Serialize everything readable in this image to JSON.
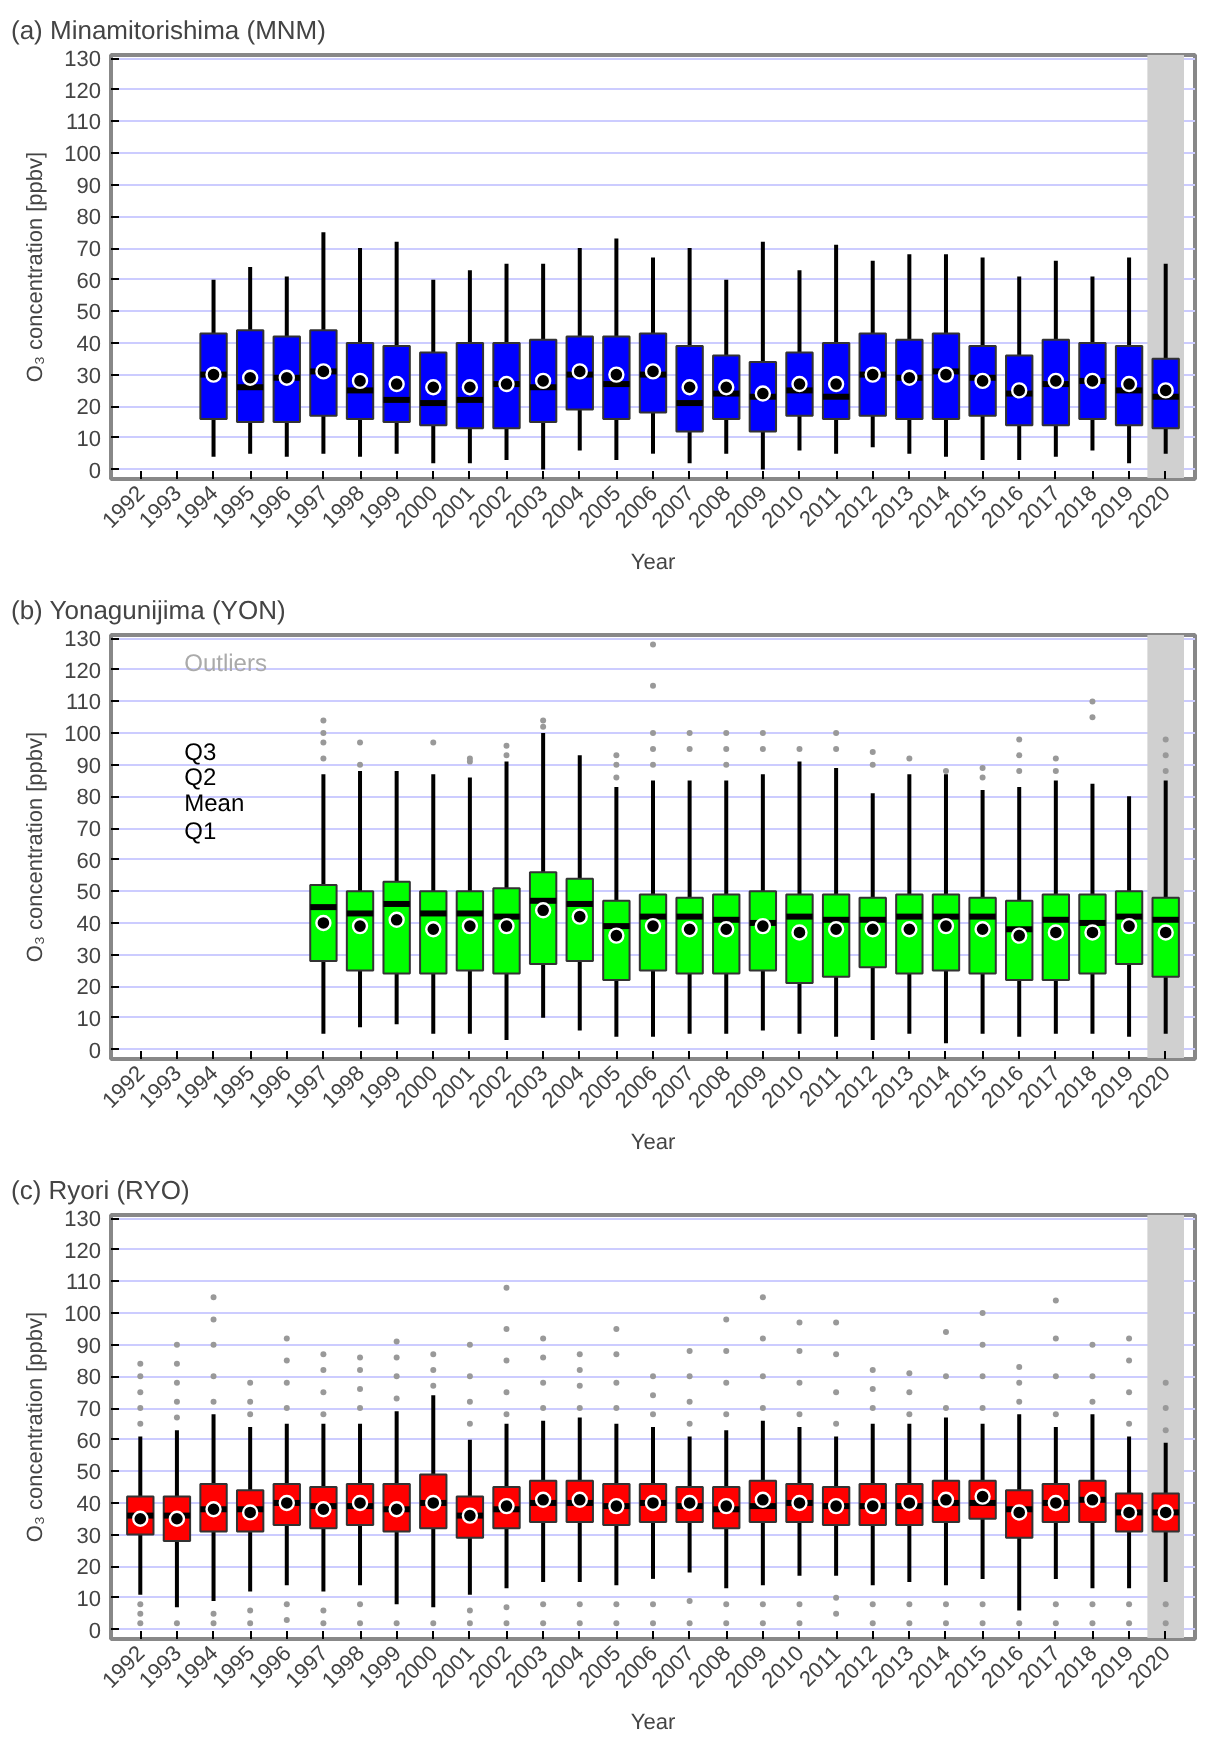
{
  "chart_data": [
    {
      "type": "box",
      "title": "(a) Minamitorishima (MNM)",
      "xlabel": "Year",
      "ylabel": "O₃ concentration [ppbv]",
      "categories": [
        "1992",
        "1993",
        "1994",
        "1995",
        "1996",
        "1997",
        "1998",
        "1999",
        "2000",
        "2001",
        "2002",
        "2003",
        "2004",
        "2005",
        "2006",
        "2007",
        "2008",
        "2009",
        "2010",
        "2011",
        "2012",
        "2013",
        "2014",
        "2015",
        "2016",
        "2017",
        "2018",
        "2019",
        "2020"
      ],
      "ylim": [
        -3,
        131
      ],
      "yticks": [
        0,
        10,
        20,
        30,
        40,
        50,
        60,
        70,
        80,
        90,
        100,
        110,
        120,
        130
      ],
      "grid": "y",
      "bands": [
        {
          "axis": "x",
          "from": "2020",
          "to": "2020",
          "color": "#d0d0d0"
        }
      ],
      "series": [
        {
          "color": "#0000ff",
          "boxes": [
            null,
            null,
            {
              "low": 4,
              "q1": 16,
              "median": 30,
              "q3": 43,
              "high": 60,
              "mean": 30
            },
            {
              "low": 5,
              "q1": 15,
              "median": 26,
              "q3": 44,
              "high": 64,
              "mean": 29
            },
            {
              "low": 4,
              "q1": 15,
              "median": 29,
              "q3": 42,
              "high": 61,
              "mean": 29
            },
            {
              "low": 5,
              "q1": 17,
              "median": 31,
              "q3": 44,
              "high": 75,
              "mean": 31
            },
            {
              "low": 4,
              "q1": 16,
              "median": 25,
              "q3": 40,
              "high": 70,
              "mean": 28
            },
            {
              "low": 5,
              "q1": 15,
              "median": 22,
              "q3": 39,
              "high": 72,
              "mean": 27
            },
            {
              "low": 2,
              "q1": 14,
              "median": 21,
              "q3": 37,
              "high": 60,
              "mean": 26
            },
            {
              "low": 2,
              "q1": 13,
              "median": 22,
              "q3": 40,
              "high": 63,
              "mean": 26
            },
            {
              "low": 3,
              "q1": 13,
              "median": 27,
              "q3": 40,
              "high": 65,
              "mean": 27
            },
            {
              "low": 0,
              "q1": 15,
              "median": 26,
              "q3": 41,
              "high": 65,
              "mean": 28
            },
            {
              "low": 6,
              "q1": 19,
              "median": 30,
              "q3": 42,
              "high": 70,
              "mean": 31
            },
            {
              "low": 3,
              "q1": 16,
              "median": 27,
              "q3": 42,
              "high": 73,
              "mean": 30
            },
            {
              "low": 5,
              "q1": 18,
              "median": 30,
              "q3": 43,
              "high": 67,
              "mean": 31
            },
            {
              "low": 2,
              "q1": 12,
              "median": 21,
              "q3": 39,
              "high": 70,
              "mean": 26
            },
            {
              "low": 5,
              "q1": 16,
              "median": 24,
              "q3": 36,
              "high": 60,
              "mean": 26
            },
            {
              "low": 0,
              "q1": 12,
              "median": 23,
              "q3": 34,
              "high": 72,
              "mean": 24
            },
            {
              "low": 6,
              "q1": 17,
              "median": 25,
              "q3": 37,
              "high": 63,
              "mean": 27
            },
            {
              "low": 5,
              "q1": 16,
              "median": 23,
              "q3": 40,
              "high": 71,
              "mean": 27
            },
            {
              "low": 7,
              "q1": 17,
              "median": 30,
              "q3": 43,
              "high": 66,
              "mean": 30
            },
            {
              "low": 5,
              "q1": 16,
              "median": 29,
              "q3": 41,
              "high": 68,
              "mean": 29
            },
            {
              "low": 4,
              "q1": 16,
              "median": 31,
              "q3": 43,
              "high": 68,
              "mean": 30
            },
            {
              "low": 3,
              "q1": 17,
              "median": 29,
              "q3": 39,
              "high": 67,
              "mean": 28
            },
            {
              "low": 3,
              "q1": 14,
              "median": 24,
              "q3": 36,
              "high": 61,
              "mean": 25
            },
            {
              "low": 4,
              "q1": 14,
              "median": 27,
              "q3": 41,
              "high": 66,
              "mean": 28
            },
            {
              "low": 6,
              "q1": 16,
              "median": 28,
              "q3": 40,
              "high": 61,
              "mean": 28
            },
            {
              "low": 2,
              "q1": 14,
              "median": 25,
              "q3": 39,
              "high": 67,
              "mean": 27
            },
            {
              "low": 5,
              "q1": 13,
              "median": 23,
              "q3": 35,
              "high": 65,
              "mean": 25
            }
          ]
        }
      ]
    },
    {
      "type": "box",
      "title": "(b) Yonagunijima (YON)",
      "xlabel": "Year",
      "ylabel": "O₃ concentration [ppbv]",
      "categories": [
        "1992",
        "1993",
        "1994",
        "1995",
        "1996",
        "1997",
        "1998",
        "1999",
        "2000",
        "2001",
        "2002",
        "2003",
        "2004",
        "2005",
        "2006",
        "2007",
        "2008",
        "2009",
        "2010",
        "2011",
        "2012",
        "2013",
        "2014",
        "2015",
        "2016",
        "2017",
        "2018",
        "2019",
        "2020"
      ],
      "ylim": [
        -3,
        131
      ],
      "yticks": [
        0,
        10,
        20,
        30,
        40,
        50,
        60,
        70,
        80,
        90,
        100,
        110,
        120,
        130
      ],
      "grid": "y",
      "annotations": [
        "Outliers",
        "Q3",
        "Q2",
        "Mean",
        "Q1"
      ],
      "bands": [
        {
          "axis": "x",
          "from": "2020",
          "to": "2020",
          "color": "#d0d0d0"
        }
      ],
      "series": [
        {
          "color": "#00ff00",
          "boxes": [
            null,
            null,
            null,
            null,
            null,
            {
              "low": 5,
              "q1": 28,
              "median": 45,
              "q3": 52,
              "high": 87,
              "mean": 40,
              "outliers": [
                92,
                97,
                100,
                104
              ]
            },
            {
              "low": 7,
              "q1": 25,
              "median": 43,
              "q3": 50,
              "high": 88,
              "mean": 39,
              "outliers": [
                90,
                97
              ]
            },
            {
              "low": 8,
              "q1": 24,
              "median": 46,
              "q3": 53,
              "high": 88,
              "mean": 41
            },
            {
              "low": 5,
              "q1": 24,
              "median": 43,
              "q3": 50,
              "high": 87,
              "mean": 38,
              "outliers": [
                97
              ]
            },
            {
              "low": 5,
              "q1": 25,
              "median": 43,
              "q3": 50,
              "high": 86,
              "mean": 39,
              "outliers": [
                91,
                92
              ]
            },
            {
              "low": 3,
              "q1": 24,
              "median": 42,
              "q3": 51,
              "high": 91,
              "mean": 39,
              "outliers": [
                93,
                96
              ]
            },
            {
              "low": 10,
              "q1": 27,
              "median": 47,
              "q3": 56,
              "high": 100,
              "mean": 44,
              "outliers": [
                102,
                104
              ]
            },
            {
              "low": 6,
              "q1": 28,
              "median": 46,
              "q3": 54,
              "high": 93,
              "mean": 42
            },
            {
              "low": 4,
              "q1": 22,
              "median": 39,
              "q3": 47,
              "high": 83,
              "mean": 36,
              "outliers": [
                86,
                90,
                93
              ]
            },
            {
              "low": 4,
              "q1": 25,
              "median": 42,
              "q3": 49,
              "high": 85,
              "mean": 39,
              "outliers": [
                90,
                95,
                100,
                115,
                128
              ]
            },
            {
              "low": 5,
              "q1": 24,
              "median": 42,
              "q3": 48,
              "high": 85,
              "mean": 38,
              "outliers": [
                95,
                100
              ]
            },
            {
              "low": 5,
              "q1": 24,
              "median": 41,
              "q3": 49,
              "high": 85,
              "mean": 38,
              "outliers": [
                90,
                95,
                100
              ]
            },
            {
              "low": 6,
              "q1": 25,
              "median": 40,
              "q3": 50,
              "high": 87,
              "mean": 39,
              "outliers": [
                95,
                100
              ]
            },
            {
              "low": 5,
              "q1": 21,
              "median": 42,
              "q3": 49,
              "high": 91,
              "mean": 37,
              "outliers": [
                95
              ]
            },
            {
              "low": 4,
              "q1": 23,
              "median": 41,
              "q3": 49,
              "high": 89,
              "mean": 38,
              "outliers": [
                95,
                100
              ]
            },
            {
              "low": 3,
              "q1": 26,
              "median": 41,
              "q3": 48,
              "high": 81,
              "mean": 38,
              "outliers": [
                90,
                94
              ]
            },
            {
              "low": 5,
              "q1": 24,
              "median": 42,
              "q3": 49,
              "high": 87,
              "mean": 38,
              "outliers": [
                92
              ]
            },
            {
              "low": 2,
              "q1": 25,
              "median": 42,
              "q3": 49,
              "high": 87,
              "mean": 39,
              "outliers": [
                88
              ]
            },
            {
              "low": 5,
              "q1": 24,
              "median": 42,
              "q3": 48,
              "high": 82,
              "mean": 38,
              "outliers": [
                86,
                89
              ]
            },
            {
              "low": 4,
              "q1": 22,
              "median": 38,
              "q3": 47,
              "high": 83,
              "mean": 36,
              "outliers": [
                88,
                93,
                98
              ]
            },
            {
              "low": 5,
              "q1": 22,
              "median": 41,
              "q3": 49,
              "high": 85,
              "mean": 37,
              "outliers": [
                88,
                92
              ]
            },
            {
              "low": 5,
              "q1": 24,
              "median": 40,
              "q3": 49,
              "high": 84,
              "mean": 37,
              "outliers": [
                105,
                110
              ]
            },
            {
              "low": 4,
              "q1": 27,
              "median": 42,
              "q3": 50,
              "high": 80,
              "mean": 39
            },
            {
              "low": 5,
              "q1": 23,
              "median": 41,
              "q3": 48,
              "high": 85,
              "mean": 37,
              "outliers": [
                88,
                93,
                98
              ]
            }
          ]
        }
      ]
    },
    {
      "type": "box",
      "title": "(c) Ryori (RYO)",
      "xlabel": "Year",
      "ylabel": "O₃ concentration [ppbv]",
      "categories": [
        "1992",
        "1993",
        "1994",
        "1995",
        "1996",
        "1997",
        "1998",
        "1999",
        "2000",
        "2001",
        "2002",
        "2003",
        "2004",
        "2005",
        "2006",
        "2007",
        "2008",
        "2009",
        "2010",
        "2011",
        "2012",
        "2013",
        "2014",
        "2015",
        "2016",
        "2017",
        "2018",
        "2019",
        "2020"
      ],
      "ylim": [
        -3,
        131
      ],
      "yticks": [
        0,
        10,
        20,
        30,
        40,
        50,
        60,
        70,
        80,
        90,
        100,
        110,
        120,
        130
      ],
      "grid": "y",
      "bands": [
        {
          "axis": "x",
          "from": "2020",
          "to": "2020",
          "color": "#d0d0d0"
        }
      ],
      "series": [
        {
          "color": "#ff0000",
          "boxes": [
            {
              "low": 11,
              "q1": 30,
              "median": 36,
              "q3": 42,
              "high": 61,
              "mean": 35,
              "outliers": [
                2,
                5,
                8,
                65,
                70,
                75,
                80,
                84
              ]
            },
            {
              "low": 7,
              "q1": 28,
              "median": 36,
              "q3": 42,
              "high": 63,
              "mean": 35,
              "outliers": [
                2,
                67,
                72,
                78,
                84,
                90
              ]
            },
            {
              "low": 9,
              "q1": 31,
              "median": 38,
              "q3": 46,
              "high": 68,
              "mean": 38,
              "outliers": [
                2,
                5,
                72,
                80,
                90,
                98,
                105
              ]
            },
            {
              "low": 12,
              "q1": 31,
              "median": 38,
              "q3": 44,
              "high": 64,
              "mean": 37,
              "outliers": [
                2,
                6,
                68,
                72,
                78
              ]
            },
            {
              "low": 14,
              "q1": 33,
              "median": 40,
              "q3": 46,
              "high": 65,
              "mean": 40,
              "outliers": [
                3,
                8,
                70,
                78,
                85,
                92
              ]
            },
            {
              "low": 12,
              "q1": 32,
              "median": 39,
              "q3": 45,
              "high": 65,
              "mean": 38,
              "outliers": [
                2,
                6,
                68,
                75,
                82,
                87
              ]
            },
            {
              "low": 14,
              "q1": 33,
              "median": 39,
              "q3": 46,
              "high": 65,
              "mean": 40,
              "outliers": [
                2,
                8,
                70,
                76,
                82,
                86
              ]
            },
            {
              "low": 8,
              "q1": 31,
              "median": 38,
              "q3": 46,
              "high": 69,
              "mean": 38,
              "outliers": [
                2,
                73,
                80,
                86,
                91
              ]
            },
            {
              "low": 7,
              "q1": 32,
              "median": 40,
              "q3": 49,
              "high": 74,
              "mean": 40,
              "outliers": [
                2,
                77,
                82,
                87
              ]
            },
            {
              "low": 11,
              "q1": 29,
              "median": 36,
              "q3": 42,
              "high": 60,
              "mean": 36,
              "outliers": [
                2,
                6,
                65,
                72,
                80,
                90
              ]
            },
            {
              "low": 13,
              "q1": 32,
              "median": 38,
              "q3": 45,
              "high": 65,
              "mean": 39,
              "outliers": [
                2,
                7,
                68,
                75,
                85,
                95,
                108
              ]
            },
            {
              "low": 15,
              "q1": 34,
              "median": 40,
              "q3": 47,
              "high": 66,
              "mean": 41,
              "outliers": [
                2,
                8,
                70,
                78,
                86,
                92
              ]
            },
            {
              "low": 15,
              "q1": 34,
              "median": 40,
              "q3": 47,
              "high": 67,
              "mean": 41,
              "outliers": [
                2,
                8,
                70,
                77,
                82,
                87
              ]
            },
            {
              "low": 14,
              "q1": 33,
              "median": 39,
              "q3": 46,
              "high": 65,
              "mean": 39,
              "outliers": [
                2,
                8,
                70,
                78,
                87,
                95
              ]
            },
            {
              "low": 16,
              "q1": 34,
              "median": 40,
              "q3": 46,
              "high": 64,
              "mean": 40,
              "outliers": [
                2,
                8,
                68,
                74,
                80
              ]
            },
            {
              "low": 18,
              "q1": 34,
              "median": 39,
              "q3": 45,
              "high": 61,
              "mean": 40,
              "outliers": [
                2,
                9,
                65,
                72,
                80,
                88
              ]
            },
            {
              "low": 13,
              "q1": 32,
              "median": 38,
              "q3": 45,
              "high": 63,
              "mean": 39,
              "outliers": [
                2,
                8,
                68,
                78,
                88,
                98
              ]
            },
            {
              "low": 14,
              "q1": 34,
              "median": 39,
              "q3": 47,
              "high": 66,
              "mean": 41,
              "outliers": [
                2,
                8,
                70,
                80,
                92,
                105
              ]
            },
            {
              "low": 17,
              "q1": 34,
              "median": 40,
              "q3": 46,
              "high": 64,
              "mean": 40,
              "outliers": [
                2,
                8,
                68,
                78,
                88,
                97
              ]
            },
            {
              "low": 17,
              "q1": 33,
              "median": 39,
              "q3": 45,
              "high": 61,
              "mean": 39,
              "outliers": [
                5,
                10,
                65,
                75,
                87,
                97
              ]
            },
            {
              "low": 14,
              "q1": 33,
              "median": 39,
              "q3": 46,
              "high": 65,
              "mean": 39,
              "outliers": [
                2,
                8,
                70,
                76,
                82
              ]
            },
            {
              "low": 15,
              "q1": 33,
              "median": 39,
              "q3": 46,
              "high": 65,
              "mean": 40,
              "outliers": [
                2,
                8,
                68,
                75,
                81
              ]
            },
            {
              "low": 14,
              "q1": 34,
              "median": 40,
              "q3": 47,
              "high": 67,
              "mean": 41,
              "outliers": [
                2,
                8,
                70,
                80,
                94
              ]
            },
            {
              "low": 16,
              "q1": 35,
              "median": 40,
              "q3": 47,
              "high": 65,
              "mean": 42,
              "outliers": [
                2,
                8,
                70,
                80,
                90,
                100
              ]
            },
            {
              "low": 6,
              "q1": 29,
              "median": 38,
              "q3": 44,
              "high": 68,
              "mean": 37,
              "outliers": [
                2,
                72,
                78,
                83
              ]
            },
            {
              "low": 16,
              "q1": 34,
              "median": 40,
              "q3": 46,
              "high": 64,
              "mean": 40,
              "outliers": [
                2,
                8,
                68,
                80,
                92,
                104
              ]
            },
            {
              "low": 13,
              "q1": 34,
              "median": 41,
              "q3": 47,
              "high": 68,
              "mean": 41,
              "outliers": [
                2,
                8,
                72,
                80,
                90
              ]
            },
            {
              "low": 13,
              "q1": 31,
              "median": 37,
              "q3": 43,
              "high": 61,
              "mean": 37,
              "outliers": [
                2,
                8,
                65,
                75,
                85,
                92
              ]
            },
            {
              "low": 15,
              "q1": 31,
              "median": 37,
              "q3": 43,
              "high": 59,
              "mean": 37,
              "outliers": [
                2,
                8,
                63,
                70,
                78
              ]
            }
          ]
        }
      ]
    }
  ]
}
